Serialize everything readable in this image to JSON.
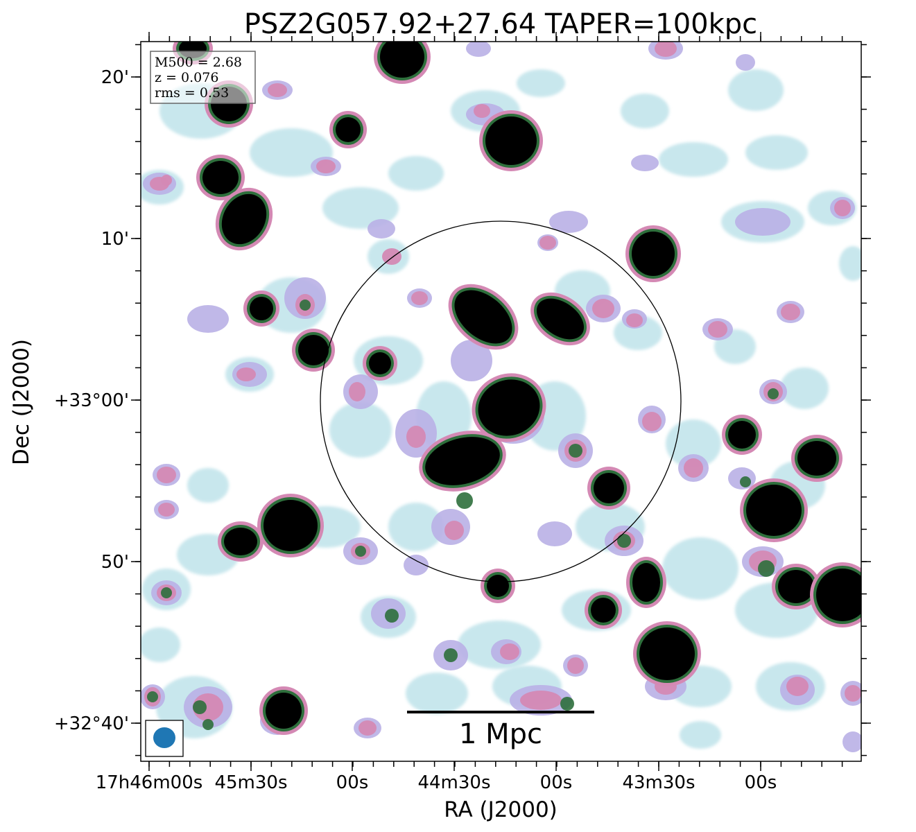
{
  "chart_data": {
    "type": "heatmap",
    "title": "PSZ2G057.92+27.64 TAPER=100kpc",
    "xlabel": "RA (J2000)",
    "ylabel": "Dec (J2000)",
    "x_tick_labels": [
      "17h46m00s",
      "45m30s",
      "00s",
      "44m30s",
      "00s",
      "43m30s",
      "00s"
    ],
    "y_tick_labels": [
      "20'",
      "10'",
      "+33°00'",
      "50'",
      "+32°40'"
    ],
    "info_box": {
      "m500": "M500 = 2.68",
      "z": "z = 0.076",
      "rms": "rms = 0.53"
    },
    "scalebar_label": "1 Mpc",
    "grid": false,
    "colormap": "cubehelix_r",
    "colors": {
      "faint": "#bfe3ea",
      "low": "#b9b0e6",
      "mid": "#d489b4",
      "high": "#2e6f3c",
      "peak": "#000000",
      "beam": "#1f77b4"
    }
  }
}
